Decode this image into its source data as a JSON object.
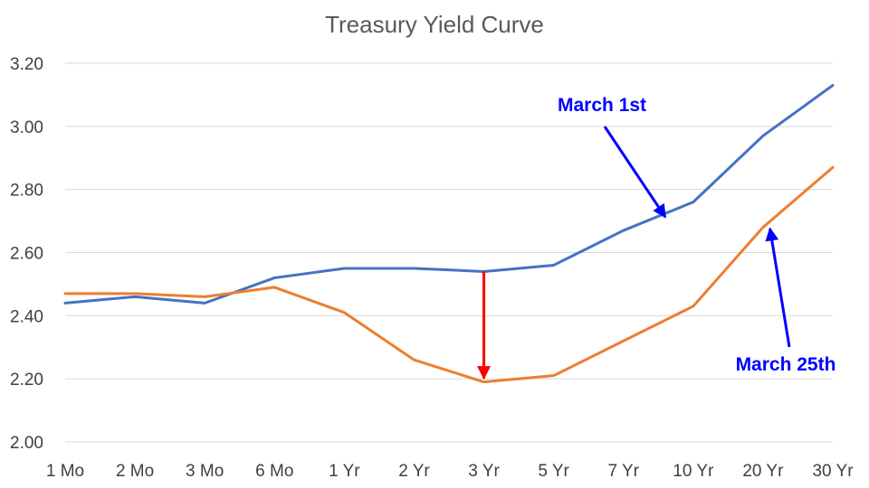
{
  "chart_data": {
    "type": "line",
    "title": "Treasury Yield Curve",
    "xlabel": "",
    "ylabel": "",
    "categories": [
      "1 Mo",
      "2 Mo",
      "3 Mo",
      "6 Mo",
      "1 Yr",
      "2 Yr",
      "3 Yr",
      "5 Yr",
      "7 Yr",
      "10 Yr",
      "20 Yr",
      "30 Yr"
    ],
    "ylim": [
      2.0,
      3.2
    ],
    "yticks": [
      "2.00",
      "2.20",
      "2.40",
      "2.60",
      "2.80",
      "3.00",
      "3.20"
    ],
    "grid": true,
    "series": [
      {
        "name": "March 1st",
        "color": "#4472C4",
        "values": [
          2.44,
          2.46,
          2.44,
          2.52,
          2.55,
          2.55,
          2.54,
          2.56,
          2.67,
          2.76,
          2.97,
          3.13
        ]
      },
      {
        "name": "March 25th",
        "color": "#ED7D31",
        "values": [
          2.47,
          2.47,
          2.46,
          2.49,
          2.41,
          2.26,
          2.19,
          2.21,
          2.32,
          2.43,
          2.68,
          2.87
        ]
      }
    ],
    "annotations": [
      {
        "text": "March 1st",
        "color": "#0000FF",
        "points_to_series": 0,
        "at_category": "7 Yr"
      },
      {
        "text": "March 25th",
        "color": "#0000FF",
        "points_to_series": 1,
        "at_category": "20 Yr"
      },
      {
        "text": "",
        "color": "#FF0000",
        "type": "down-arrow",
        "at_category": "3 Yr",
        "from": 2.54,
        "to": 2.19
      }
    ]
  }
}
